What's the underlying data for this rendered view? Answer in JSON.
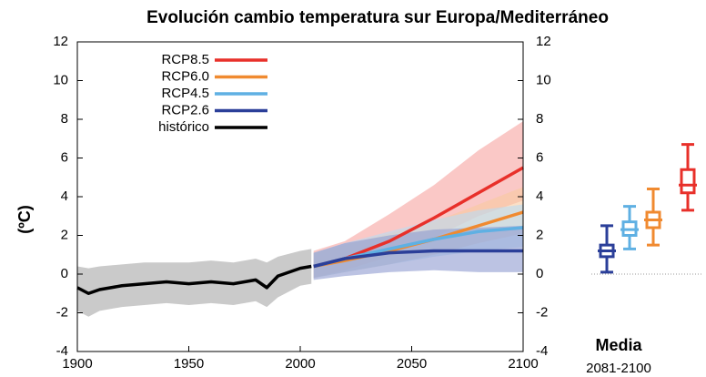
{
  "chart_data": [
    {
      "type": "line",
      "title": "Evolución cambio temperatura sur Europa/Mediterráneo",
      "ylabel": "(ºC)",
      "xlim": [
        1900,
        2100
      ],
      "xticks": [
        1900,
        1950,
        2000,
        2050,
        2100
      ],
      "ylim": [
        -4,
        12
      ],
      "yticks": [
        -4,
        -2,
        0,
        2,
        4,
        6,
        8,
        10,
        12
      ],
      "y2lim": [
        -4,
        12
      ],
      "y2ticks": [
        -4,
        -2,
        0,
        2,
        4,
        6,
        8,
        10,
        12
      ],
      "legend": "upper-left",
      "series": [
        {
          "name": "RCP8.5",
          "color": "#e8302a",
          "band_color": "#f7a3a0",
          "x": [
            2006,
            2020,
            2040,
            2060,
            2080,
            2100
          ],
          "values": [
            0.4,
            0.8,
            1.7,
            2.9,
            4.2,
            5.5
          ],
          "lower": [
            -0.2,
            0.2,
            0.9,
            1.9,
            3.0,
            3.8
          ],
          "upper": [
            1.2,
            1.7,
            3.1,
            4.6,
            6.4,
            7.9
          ]
        },
        {
          "name": "RCP6.0",
          "color": "#f08a30",
          "band_color": "#f8c9a0",
          "x": [
            2006,
            2020,
            2040,
            2060,
            2080,
            2100
          ],
          "values": [
            0.4,
            0.7,
            1.2,
            1.8,
            2.5,
            3.2
          ],
          "lower": [
            -0.2,
            0.1,
            0.5,
            1.0,
            1.6,
            2.1
          ],
          "upper": [
            1.1,
            1.5,
            2.1,
            2.7,
            3.6,
            4.5
          ]
        },
        {
          "name": "RCP4.5",
          "color": "#5fb0e3",
          "band_color": "#b9dcf3",
          "x": [
            2006,
            2020,
            2040,
            2060,
            2080,
            2100
          ],
          "values": [
            0.4,
            0.8,
            1.3,
            1.8,
            2.2,
            2.4
          ],
          "lower": [
            -0.2,
            0.1,
            0.5,
            0.9,
            1.2,
            1.4
          ],
          "upper": [
            1.1,
            1.6,
            2.2,
            2.8,
            3.3,
            3.6
          ]
        },
        {
          "name": "RCP2.6",
          "color": "#2b3f99",
          "band_color": "#8f9bd1",
          "x": [
            2006,
            2020,
            2040,
            2060,
            2080,
            2100
          ],
          "values": [
            0.4,
            0.8,
            1.1,
            1.2,
            1.2,
            1.2
          ],
          "lower": [
            -0.3,
            -0.1,
            0.1,
            0.2,
            0.1,
            0.1
          ],
          "upper": [
            1.1,
            1.6,
            2.0,
            2.3,
            2.4,
            2.5
          ]
        },
        {
          "name": "histórico",
          "color": "#000000",
          "band_color": "#a6a6a6",
          "x": [
            1900,
            1905,
            1910,
            1920,
            1930,
            1940,
            1950,
            1960,
            1970,
            1980,
            1985,
            1990,
            2000,
            2005
          ],
          "values": [
            -0.7,
            -1.0,
            -0.8,
            -0.6,
            -0.5,
            -0.4,
            -0.5,
            -0.4,
            -0.5,
            -0.3,
            -0.7,
            -0.1,
            0.3,
            0.4
          ],
          "lower": [
            -1.9,
            -2.2,
            -1.9,
            -1.7,
            -1.6,
            -1.5,
            -1.6,
            -1.5,
            -1.6,
            -1.4,
            -1.7,
            -1.2,
            -0.6,
            -0.5
          ],
          "upper": [
            0.4,
            0.3,
            0.4,
            0.5,
            0.6,
            0.6,
            0.6,
            0.7,
            0.6,
            0.8,
            0.6,
            0.9,
            1.2,
            1.3
          ]
        }
      ]
    },
    {
      "type": "box",
      "title": "Media",
      "subtitle": "2081-2100",
      "ylim": [
        -4,
        12
      ],
      "hline": 0,
      "boxes": [
        {
          "color": "#2b3f99",
          "whislo": 0.1,
          "q1": 0.9,
          "med": 1.2,
          "q3": 1.5,
          "whishi": 2.5
        },
        {
          "color": "#5fb0e3",
          "whislo": 1.3,
          "q1": 2.0,
          "med": 2.3,
          "q3": 2.7,
          "whishi": 3.5
        },
        {
          "color": "#f08a30",
          "whislo": 1.5,
          "q1": 2.4,
          "med": 2.8,
          "q3": 3.2,
          "whishi": 4.4
        },
        {
          "color": "#e8302a",
          "whislo": 3.3,
          "q1": 4.2,
          "med": 4.6,
          "q3": 5.4,
          "whishi": 6.7
        }
      ]
    }
  ]
}
